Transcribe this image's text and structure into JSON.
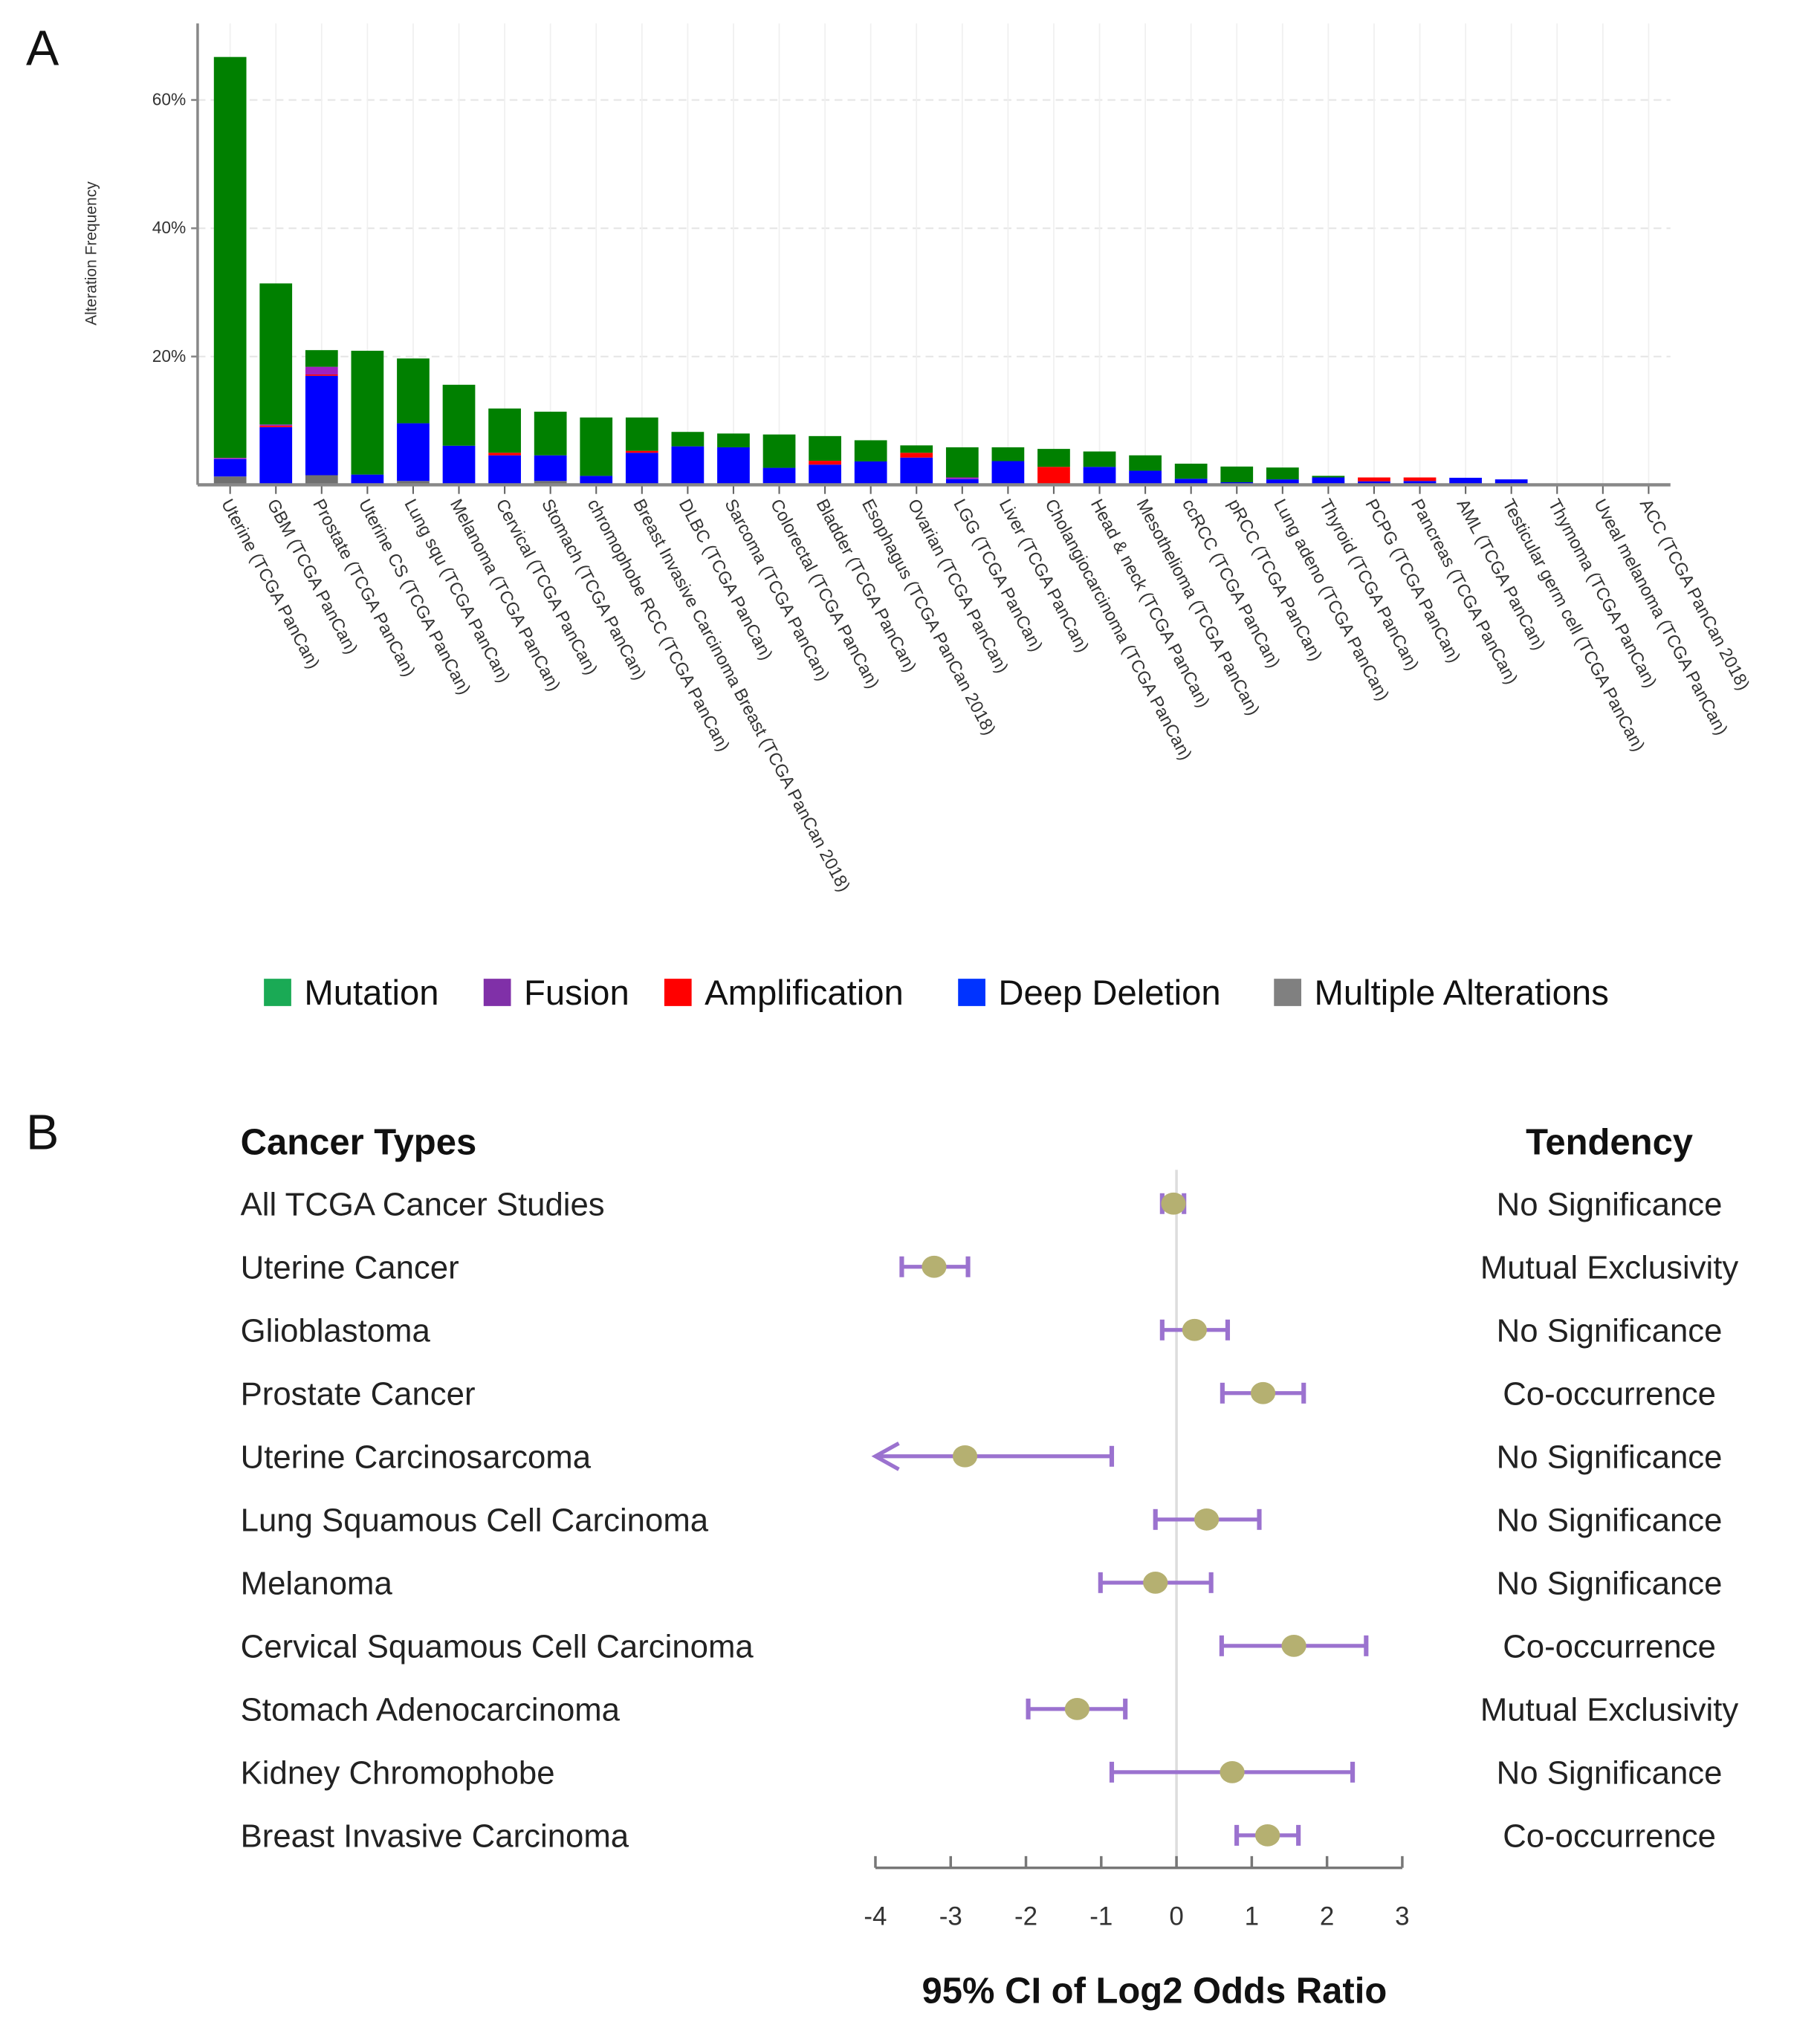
{
  "panel_labels": {
    "a": "A",
    "b": "B"
  },
  "chart_data": [
    {
      "type": "bar",
      "stacked": true,
      "title": "",
      "ylabel": "Alteration Frequency",
      "xlabel": "",
      "ylim": [
        0,
        70
      ],
      "yticks": [
        20,
        40,
        60
      ],
      "ytick_labels": [
        "20%",
        "40%",
        "60%"
      ],
      "grid": true,
      "legend_position": "bottom",
      "categories": [
        "Uterine (TCGA PanCan)",
        "GBM (TCGA PanCan)",
        "Prostate (TCGA PanCan)",
        "Uterine CS (TCGA PanCan)",
        "Lung squ (TCGA PanCan)",
        "Melanoma (TCGA PanCan)",
        "Cervical (TCGA PanCan)",
        "Stomach (TCGA PanCan)",
        "chromophobe RCC (TCGA PanCan)",
        "Breast Invasive Carcinoma Breast (TCGA PanCan 2018)",
        "DLBC (TCGA PanCan)",
        "Sarcoma (TCGA PanCan)",
        "Colorectal (TCGA PanCan)",
        "Bladder (TCGA PanCan)",
        "Esophagus (TCGA PanCan 2018)",
        "Ovarian (TCGA PanCan)",
        "LGG (TCGA PanCan)",
        "Liver (TCGA PanCan)",
        "Cholangiocarcinoma (TCGA PanCan)",
        "Head & neck (TCGA PanCan)",
        "Mesothelioma (TCGA PanCan)",
        "ccRCC (TCGA PanCan)",
        "pRCC (TCGA PanCan)",
        "Lung adeno (TCGA PanCan)",
        "Thyroid (TCGA PanCan)",
        "PCPG (TCGA PanCan)",
        "Pancreas (TCGA PanCan)",
        "AML (TCGA PanCan)",
        "Testicular germ cell (TCGA PanCan)",
        "Thymoma (TCGA PanCan)",
        "Uveal melanoma (TCGA PanCan)",
        "ACC (TCGA PanCan 2018)"
      ],
      "series": [
        {
          "name": "Multiple Alterations",
          "color": "#707070",
          "legend_color": "#808080",
          "values": [
            1.3,
            0,
            1.5,
            0,
            0.6,
            0,
            0,
            0.6,
            0,
            0,
            0,
            0,
            0.25,
            0,
            0,
            0,
            0,
            0,
            0,
            0,
            0,
            0,
            0,
            0,
            0,
            0,
            0,
            0,
            0,
            0,
            0,
            0
          ]
        },
        {
          "name": "Deep Deletion",
          "color": "#0000ff",
          "legend_color": "#0033ff",
          "values": [
            2.7,
            9,
            15.5,
            1.6,
            9,
            6.1,
            4.6,
            4,
            1.4,
            5,
            6,
            5.85,
            2.4,
            3.15,
            3.65,
            4.25,
            0.9,
            3.7,
            0,
            2.8,
            2.2,
            0.95,
            0.4,
            0.85,
            1.15,
            0.55,
            0.6,
            1.1,
            0.85,
            0,
            0,
            0
          ]
        },
        {
          "name": "Amplification",
          "color": "#ff0000",
          "legend_color": "#ff0000",
          "values": [
            0,
            0.2,
            0.2,
            0,
            0,
            0,
            0.4,
            0,
            0,
            0.3,
            0,
            0,
            0,
            0.6,
            0,
            0.75,
            0,
            0,
            2.8,
            0,
            0,
            0,
            0,
            0,
            0,
            0.6,
            0.55,
            0,
            0,
            0,
            0,
            0
          ]
        },
        {
          "name": "Fusion",
          "color": "#a020c0",
          "legend_color": "#8030a8",
          "values": [
            0.2,
            0.2,
            1.2,
            0,
            0,
            0,
            0,
            0,
            0,
            0,
            0,
            0,
            0,
            0,
            0,
            0,
            0.25,
            0,
            0,
            0,
            0,
            0,
            0,
            0,
            0,
            0,
            0,
            0,
            0,
            0,
            0,
            0
          ]
        },
        {
          "name": "Mutation",
          "color": "#008000",
          "legend_color": "#1aaa55",
          "values": [
            62.5,
            22,
            2.6,
            19.3,
            10.1,
            9.5,
            6.9,
            6.8,
            9.1,
            5.2,
            2.25,
            2.15,
            5.2,
            3.85,
            3.3,
            1.15,
            4.7,
            2.15,
            2.8,
            2.4,
            2.4,
            2.35,
            2.45,
            1.85,
            0.25,
            0,
            0,
            0,
            0,
            0,
            0,
            0
          ]
        }
      ],
      "legend_order": [
        "Mutation",
        "Fusion",
        "Amplification",
        "Deep Deletion",
        "Multiple Alterations"
      ]
    },
    {
      "type": "forest",
      "title": "",
      "xlabel": "95% CI of Log2 Odds Ratio",
      "xlim": [
        -4,
        3
      ],
      "xticks": [
        -4,
        -3,
        -2,
        -1,
        0,
        1,
        2,
        3
      ],
      "left_header": "Cancer Types",
      "right_header": "Tendency",
      "ci_color": "#9b72cf",
      "point_color": "#b5b071",
      "rows": [
        {
          "label": "All TCGA Cancer Studies",
          "estimate": -0.04,
          "lower": -0.19,
          "upper": 0.1,
          "tendency": "No Significance"
        },
        {
          "label": "Uterine Cancer",
          "estimate": -3.22,
          "lower": -3.65,
          "upper": -2.77,
          "tendency": "Mutual Exclusivity"
        },
        {
          "label": "Glioblastoma",
          "estimate": 0.24,
          "lower": -0.19,
          "upper": 0.68,
          "tendency": "No Significance"
        },
        {
          "label": "Prostate Cancer",
          "estimate": 1.15,
          "lower": 0.61,
          "upper": 1.69,
          "tendency": "Co-occurrence"
        },
        {
          "label": "Uterine Carcinosarcoma",
          "estimate": -2.81,
          "lower": null,
          "upper": -0.86,
          "tendency": "No Significance"
        },
        {
          "label": "Lung Squamous Cell Carcinoma",
          "estimate": 0.4,
          "lower": -0.28,
          "upper": 1.1,
          "tendency": "No Significance"
        },
        {
          "label": "Melanoma",
          "estimate": -0.28,
          "lower": -1.01,
          "upper": 0.46,
          "tendency": "No Significance"
        },
        {
          "label": "Cervical Squamous Cell Carcinoma",
          "estimate": 1.56,
          "lower": 0.6,
          "upper": 2.52,
          "tendency": "Co-occurrence"
        },
        {
          "label": "Stomach Adenocarcinoma",
          "estimate": -1.32,
          "lower": -1.97,
          "upper": -0.68,
          "tendency": "Mutual Exclusivity"
        },
        {
          "label": "Kidney Chromophobe",
          "estimate": 0.74,
          "lower": -0.86,
          "upper": 2.34,
          "tendency": "No Significance"
        },
        {
          "label": "Breast Invasive Carcinoma",
          "estimate": 1.21,
          "lower": 0.8,
          "upper": 1.62,
          "tendency": "Co-occurrence"
        }
      ]
    }
  ]
}
